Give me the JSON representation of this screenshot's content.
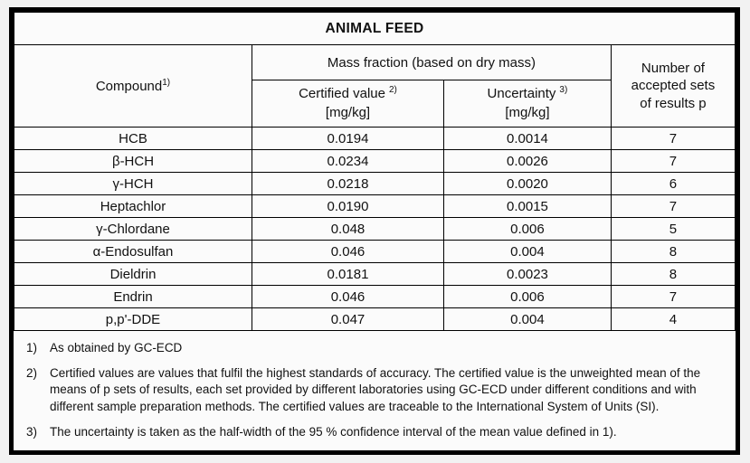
{
  "document": {
    "title": "ANIMAL FEED"
  },
  "table": {
    "headers": {
      "compound": {
        "label": "Compound",
        "sup": "1)"
      },
      "mass_fraction_group": "Mass fraction (based on dry mass)",
      "certified": {
        "label": "Certified value",
        "sup": "2)",
        "unit": "[mg/kg]"
      },
      "uncertainty": {
        "label": "Uncertainty",
        "sup": "3)",
        "unit": "[mg/kg]"
      },
      "accepted_sets": "Number of accepted sets of results p"
    },
    "rows": [
      {
        "compound": "HCB",
        "certified_value": "0.0194",
        "uncertainty": "0.0014",
        "accepted_sets": "7"
      },
      {
        "compound": "β-HCH",
        "certified_value": "0.0234",
        "uncertainty": "0.0026",
        "accepted_sets": "7"
      },
      {
        "compound": "γ-HCH",
        "certified_value": "0.0218",
        "uncertainty": "0.0020",
        "accepted_sets": "6"
      },
      {
        "compound": "Heptachlor",
        "certified_value": "0.0190",
        "uncertainty": "0.0015",
        "accepted_sets": "7"
      },
      {
        "compound": "γ-Chlordane",
        "certified_value": "0.048",
        "uncertainty": "0.006",
        "accepted_sets": "5"
      },
      {
        "compound": "α-Endosulfan",
        "certified_value": "0.046",
        "uncertainty": "0.004",
        "accepted_sets": "8"
      },
      {
        "compound": "Dieldrin",
        "certified_value": "0.0181",
        "uncertainty": "0.0023",
        "accepted_sets": "8"
      },
      {
        "compound": "Endrin",
        "certified_value": "0.046",
        "uncertainty": "0.006",
        "accepted_sets": "7"
      },
      {
        "compound": "p,p'-DDE",
        "certified_value": "0.047",
        "uncertainty": "0.004",
        "accepted_sets": "4"
      }
    ]
  },
  "footnotes": [
    {
      "num": "1)",
      "text": "As obtained by GC-ECD"
    },
    {
      "num": "2)",
      "text": "Certified values are values that fulfil the highest standards of accuracy. The certified value is the unweighted mean of the means of p sets of results, each set provided by different laboratories using GC-ECD under different conditions and with different sample preparation methods. The certified values are traceable to the International System of Units (SI)."
    },
    {
      "num": "3)",
      "text": "The uncertainty is taken as the half-width of the 95 % confidence interval of the mean value defined in 1)."
    }
  ],
  "colors": {
    "border": "#000000",
    "background": "#fbfbfb",
    "text": "#111111"
  }
}
